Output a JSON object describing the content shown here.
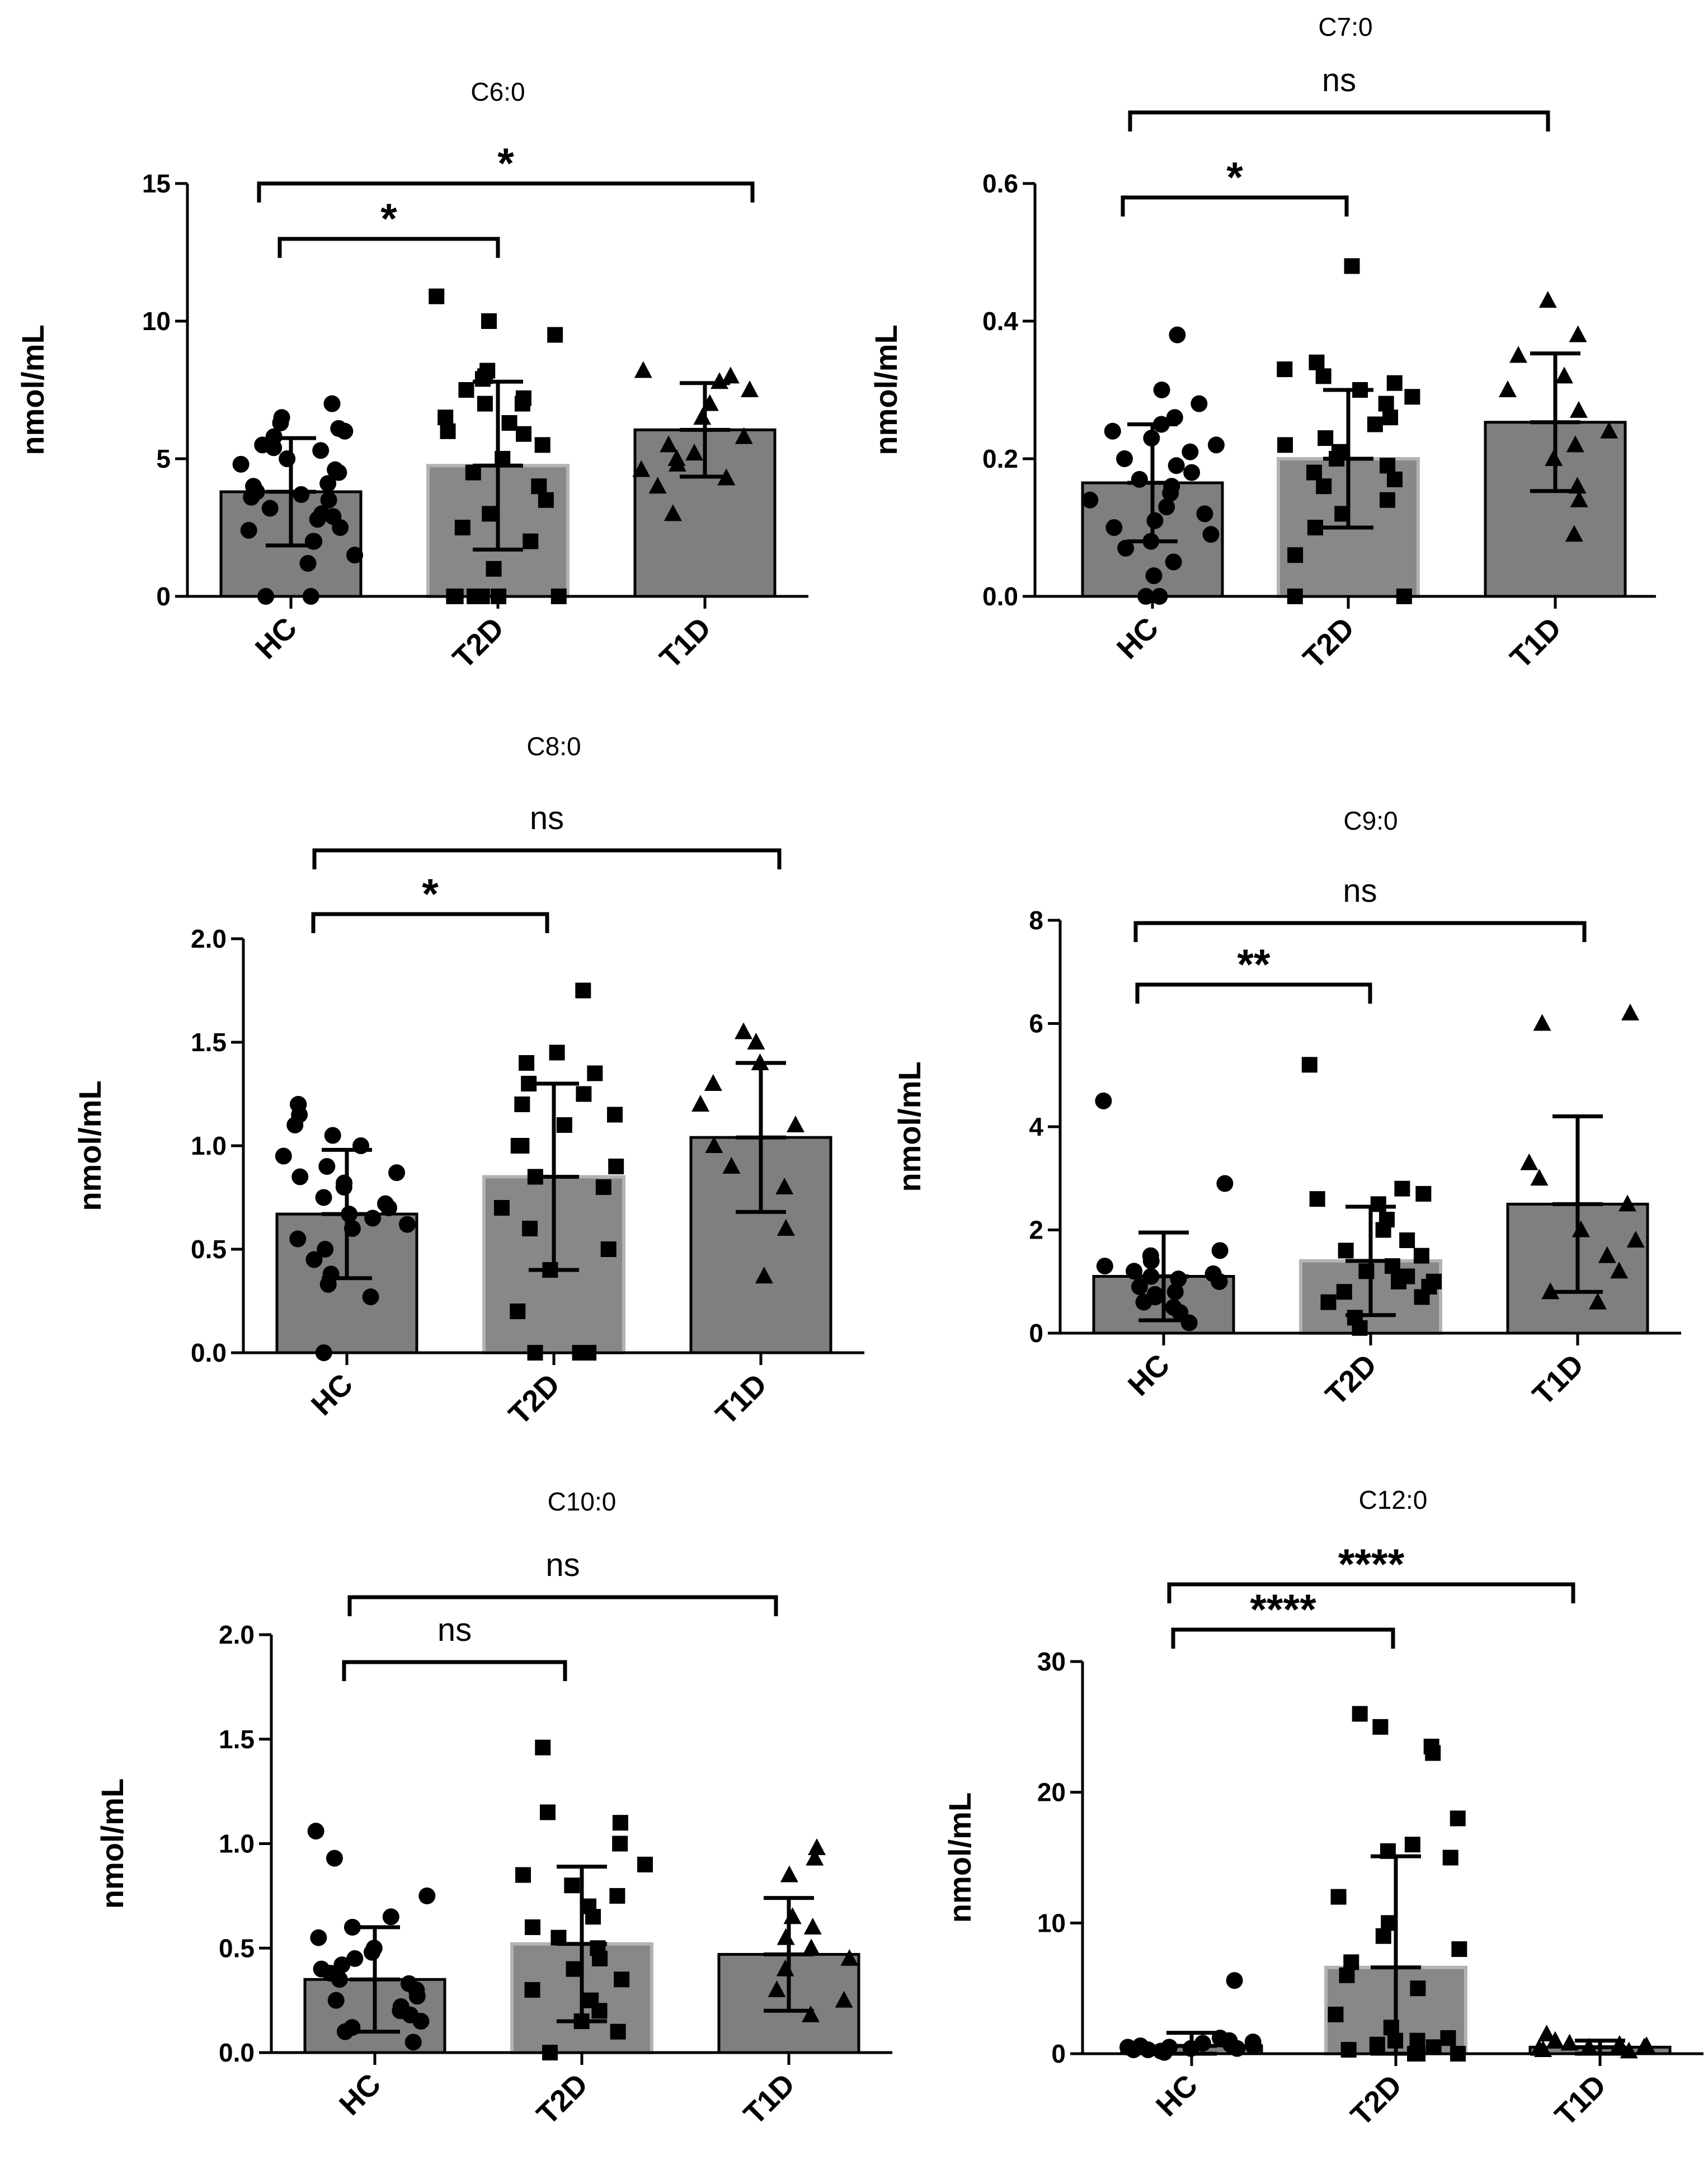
{
  "figure": {
    "y_unit": "nmol/mL"
  },
  "chart_data": [
    {
      "type": "bar",
      "title": "C6:0",
      "ylabel": "nmol/mL",
      "categories": [
        "HC",
        "T2D",
        "T1D"
      ],
      "ylim": [
        0,
        15
      ],
      "yticks": [
        0,
        5,
        10,
        15
      ],
      "ytick_labels": [
        "0",
        "5",
        "10",
        "15"
      ],
      "bar_colors": [
        "#7f7f7f",
        "#888888",
        "#7f7f7f"
      ],
      "mean": [
        3.8,
        4.75,
        6.05
      ],
      "sd": [
        1.95,
        3.05,
        1.7
      ],
      "points": [
        [
          0,
          0,
          1.2,
          1.5,
          2.0,
          2.0,
          2.4,
          2.5,
          2.8,
          2.9,
          3.0,
          3.2,
          3.5,
          3.6,
          3.7,
          3.8,
          4.0,
          4.1,
          4.5,
          4.6,
          4.8,
          5.0,
          5.3,
          5.4,
          5.5,
          5.8,
          6.0,
          6.1,
          6.3,
          6.5,
          7.0
        ],
        [
          0,
          0,
          0,
          0,
          0,
          0,
          1.0,
          2.0,
          2.5,
          3.0,
          3.5,
          4.0,
          4.5,
          5.0,
          5.5,
          5.9,
          6.0,
          6.3,
          6.5,
          7.0,
          7.0,
          7.2,
          7.5,
          7.9,
          8.0,
          8.2,
          9.5,
          10.0,
          10.9
        ],
        [
          3.0,
          4.0,
          4.3,
          4.6,
          4.8,
          5.0,
          5.2,
          5.5,
          5.8,
          6.5,
          7.0,
          7.5,
          7.8,
          8.0,
          8.2
        ]
      ],
      "brackets": [
        {
          "from": "HC",
          "to": "T2D",
          "label": "*"
        },
        {
          "from": "HC",
          "to": "T1D",
          "label": "*"
        }
      ]
    },
    {
      "type": "bar",
      "title": "C7:0",
      "ylabel": "nmol/mL",
      "categories": [
        "HC",
        "T2D",
        "T1D"
      ],
      "ylim": [
        0,
        0.6
      ],
      "yticks": [
        0,
        0.2,
        0.4,
        0.6
      ],
      "ytick_labels": [
        "0.0",
        "0.2",
        "0.4",
        "0.6"
      ],
      "bar_colors": [
        "#7f7f7f",
        "#888888",
        "#7f7f7f"
      ],
      "mean": [
        0.165,
        0.2,
        0.253
      ],
      "sd": [
        0.085,
        0.1,
        0.1
      ],
      "points": [
        [
          0,
          0,
          0.03,
          0.05,
          0.07,
          0.08,
          0.09,
          0.1,
          0.11,
          0.12,
          0.13,
          0.14,
          0.15,
          0.16,
          0.17,
          0.18,
          0.19,
          0.2,
          0.21,
          0.22,
          0.23,
          0.24,
          0.25,
          0.26,
          0.28,
          0.3,
          0.38
        ],
        [
          0,
          0,
          0.06,
          0.1,
          0.12,
          0.14,
          0.16,
          0.17,
          0.18,
          0.19,
          0.2,
          0.21,
          0.22,
          0.23,
          0.25,
          0.26,
          0.28,
          0.29,
          0.3,
          0.31,
          0.32,
          0.33,
          0.34,
          0.48
        ],
        [
          0.09,
          0.14,
          0.16,
          0.2,
          0.22,
          0.24,
          0.27,
          0.3,
          0.32,
          0.35,
          0.38,
          0.43
        ]
      ],
      "brackets": [
        {
          "from": "HC",
          "to": "T2D",
          "label": "*"
        },
        {
          "from": "HC",
          "to": "T1D",
          "label": "ns"
        }
      ]
    },
    {
      "type": "bar",
      "title": "C8:0",
      "ylabel": "nmol/mL",
      "categories": [
        "HC",
        "T2D",
        "T1D"
      ],
      "ylim": [
        0,
        2.0
      ],
      "yticks": [
        0,
        0.5,
        1.0,
        1.5,
        2.0
      ],
      "ytick_labels": [
        "0.0",
        "0.5",
        "1.0",
        "1.5",
        "2.0"
      ],
      "bar_colors": [
        "#7f7f7f",
        "#888888",
        "#7f7f7f"
      ],
      "mean": [
        0.67,
        0.85,
        1.04
      ],
      "sd": [
        0.31,
        0.45,
        0.36
      ],
      "points": [
        [
          0,
          0.27,
          0.33,
          0.38,
          0.45,
          0.5,
          0.55,
          0.6,
          0.62,
          0.65,
          0.67,
          0.7,
          0.72,
          0.75,
          0.8,
          0.82,
          0.85,
          0.87,
          0.9,
          0.95,
          1.0,
          1.05,
          1.1,
          1.15,
          1.2,
          1.2
        ],
        [
          0,
          0,
          0,
          0,
          0.2,
          0.4,
          0.5,
          0.6,
          0.7,
          0.8,
          0.85,
          0.9,
          1.0,
          1.0,
          1.1,
          1.15,
          1.2,
          1.25,
          1.3,
          1.35,
          1.4,
          1.45,
          1.75
        ],
        [
          0.37,
          0.6,
          0.8,
          0.9,
          1.0,
          1.1,
          1.2,
          1.3,
          1.4,
          1.5,
          1.55
        ]
      ],
      "brackets": [
        {
          "from": "HC",
          "to": "T2D",
          "label": "*"
        },
        {
          "from": "HC",
          "to": "T1D",
          "label": "ns"
        }
      ]
    },
    {
      "type": "bar",
      "title": "C9:0",
      "ylabel": "nmol/mL",
      "categories": [
        "HC",
        "T2D",
        "T1D"
      ],
      "ylim": [
        0,
        8
      ],
      "yticks": [
        0,
        2,
        4,
        6,
        8
      ],
      "ytick_labels": [
        "0",
        "2",
        "4",
        "6",
        "8"
      ],
      "bar_colors": [
        "#7f7f7f",
        "#888888",
        "#7f7f7f"
      ],
      "mean": [
        1.1,
        1.4,
        2.5
      ],
      "sd": [
        0.85,
        1.05,
        1.7
      ],
      "points": [
        [
          0.2,
          0.4,
          0.5,
          0.6,
          0.7,
          0.75,
          0.8,
          0.9,
          1.0,
          1.0,
          1.05,
          1.1,
          1.15,
          1.2,
          1.3,
          1.4,
          1.5,
          1.6,
          2.9,
          4.5
        ],
        [
          0.1,
          0.3,
          0.6,
          0.7,
          0.8,
          0.9,
          1.0,
          1.0,
          1.1,
          1.2,
          1.3,
          1.5,
          1.6,
          1.8,
          2.0,
          2.2,
          2.5,
          2.6,
          2.7,
          2.8,
          5.2
        ],
        [
          0.6,
          0.8,
          1.2,
          1.5,
          1.8,
          2.0,
          2.5,
          3.0,
          3.3,
          6.0,
          6.2
        ]
      ],
      "brackets": [
        {
          "from": "HC",
          "to": "T2D",
          "label": "**"
        },
        {
          "from": "HC",
          "to": "T1D",
          "label": "ns"
        }
      ]
    },
    {
      "type": "bar",
      "title": "C10:0",
      "ylabel": "nmol/mL",
      "categories": [
        "HC",
        "T2D",
        "T1D"
      ],
      "ylim": [
        0,
        2.0
      ],
      "yticks": [
        0,
        0.5,
        1.0,
        1.5,
        2.0
      ],
      "ytick_labels": [
        "0.0",
        "0.5",
        "1.0",
        "1.5",
        "2.0"
      ],
      "bar_colors": [
        "#7f7f7f",
        "#888888",
        "#7f7f7f"
      ],
      "mean": [
        0.35,
        0.52,
        0.47
      ],
      "sd": [
        0.25,
        0.37,
        0.27
      ],
      "points": [
        [
          0.05,
          0.1,
          0.12,
          0.15,
          0.18,
          0.2,
          0.22,
          0.25,
          0.27,
          0.3,
          0.33,
          0.35,
          0.38,
          0.4,
          0.42,
          0.45,
          0.48,
          0.5,
          0.55,
          0.6,
          0.65,
          0.75,
          0.93,
          1.06
        ],
        [
          0,
          0.1,
          0.15,
          0.2,
          0.25,
          0.3,
          0.35,
          0.4,
          0.45,
          0.5,
          0.55,
          0.6,
          0.65,
          0.7,
          0.75,
          0.8,
          0.85,
          0.9,
          1.0,
          1.1,
          1.15,
          1.46
        ],
        [
          0.18,
          0.25,
          0.3,
          0.4,
          0.45,
          0.5,
          0.55,
          0.6,
          0.65,
          0.85,
          0.93,
          0.98
        ]
      ],
      "brackets": [
        {
          "from": "HC",
          "to": "T2D",
          "label": "ns"
        },
        {
          "from": "HC",
          "to": "T1D",
          "label": "ns"
        }
      ]
    },
    {
      "type": "bar",
      "title": "C12:0",
      "ylabel": "nmol/mL",
      "categories": [
        "HC",
        "T2D",
        "T1D"
      ],
      "ylim": [
        0,
        30
      ],
      "yticks": [
        0,
        10,
        20,
        30
      ],
      "ytick_labels": [
        "0",
        "10",
        "20",
        "30"
      ],
      "bar_colors": [
        "#7f7f7f",
        "#888888",
        "#7f7f7f"
      ],
      "mean": [
        0.6,
        6.6,
        0.5
      ],
      "sd": [
        1.0,
        8.5,
        0.5
      ],
      "points": [
        [
          0.1,
          0.2,
          0.3,
          0.3,
          0.4,
          0.4,
          0.5,
          0.5,
          0.6,
          0.6,
          0.7,
          0.8,
          0.9,
          1.0,
          1.2,
          5.6
        ],
        [
          0,
          0,
          0,
          0.3,
          0.5,
          0.7,
          1.0,
          1.0,
          1.2,
          2.0,
          3.0,
          5.0,
          6.0,
          7.0,
          8.0,
          9.0,
          10.0,
          12.0,
          15.0,
          15.5,
          16.0,
          18.0,
          23.0,
          23.5,
          25.0,
          26.0
        ],
        [
          0.2,
          0.3,
          0.4,
          0.5,
          0.5,
          0.6,
          0.7,
          0.8,
          1.0,
          1.5
        ]
      ],
      "brackets": [
        {
          "from": "HC",
          "to": "T2D",
          "label": "****"
        },
        {
          "from": "HC",
          "to": "T1D",
          "label": "****"
        }
      ]
    }
  ]
}
